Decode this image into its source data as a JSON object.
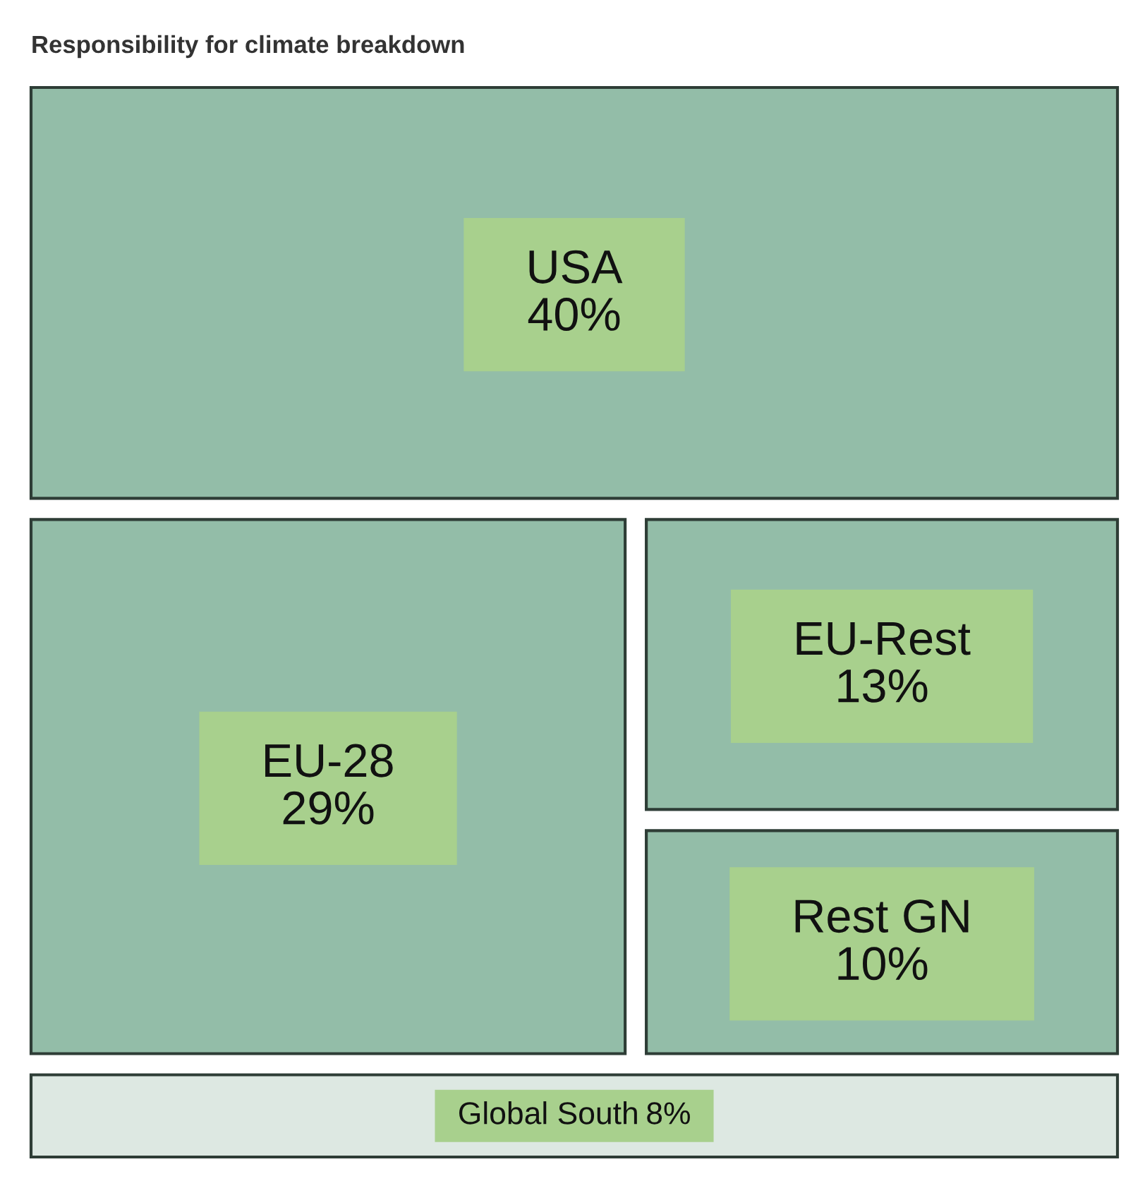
{
  "chart_data": {
    "type": "other",
    "title": "Responsibility for climate breakdown",
    "categories": [
      "USA",
      "EU-28",
      "EU-Rest",
      "Rest GN",
      "Global South"
    ],
    "values": [
      40,
      29,
      13,
      10,
      8
    ],
    "value_labels": [
      "40%",
      "29%",
      "13%",
      "10%",
      "8%"
    ],
    "colors": [
      "#93bda8",
      "#93bda8",
      "#93bda8",
      "#93bda8",
      "#dde8e2"
    ]
  }
}
